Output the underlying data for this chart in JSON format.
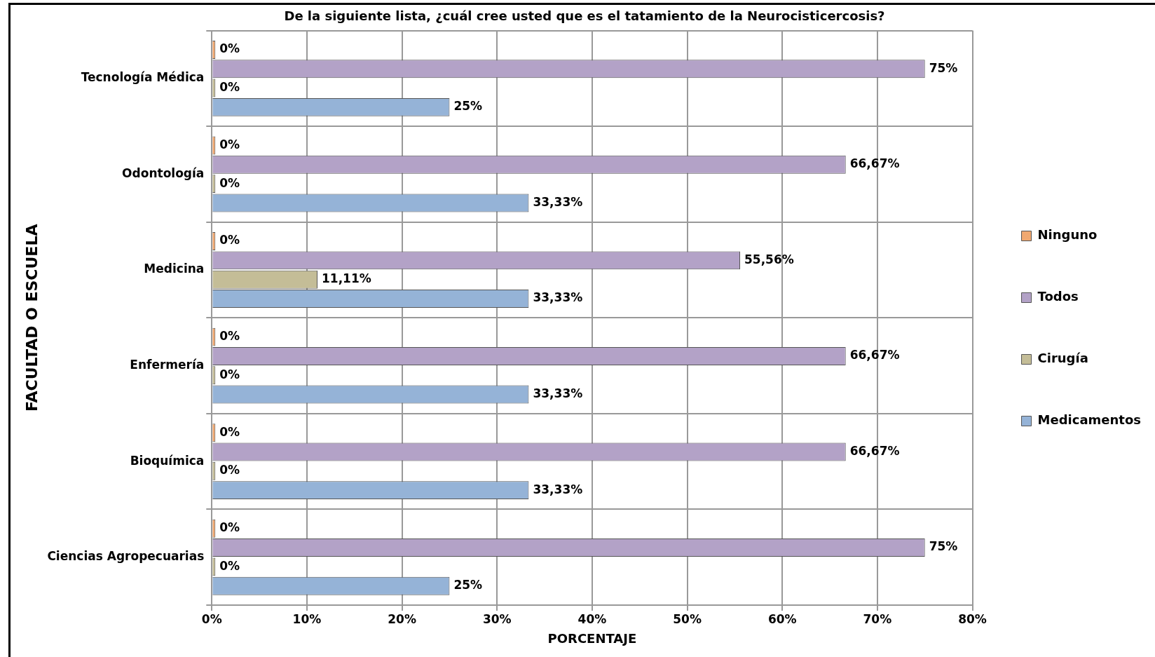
{
  "chart_data": {
    "type": "bar",
    "orientation": "horizontal",
    "title": "De la siguiente lista, ¿cuál cree usted que es el tatamiento de la Neurocisticercosis?",
    "xlabel": "PORCENTAJE",
    "ylabel": "FACULTAD O ESCUELA",
    "categories": [
      "Tecnología Médica",
      "Odontología",
      "Medicina",
      "Enfermería",
      "Bioquímica",
      "Ciencias Agropecuarias"
    ],
    "series": [
      {
        "name": "Ninguno",
        "color": "#f0a870",
        "values": [
          0,
          0,
          0,
          0,
          0,
          0
        ],
        "value_labels": [
          "0%",
          "0%",
          "0%",
          "0%",
          "0%",
          "0%"
        ]
      },
      {
        "name": "Todos",
        "color": "#b3a2c7",
        "values": [
          75,
          66.67,
          55.56,
          66.67,
          66.67,
          75
        ],
        "value_labels": [
          "75%",
          "66,67%",
          "55,56%",
          "66,67%",
          "66,67%",
          "75%"
        ]
      },
      {
        "name": "Cirugía",
        "color": "#c4bd97",
        "values": [
          0,
          0,
          11.11,
          0,
          0,
          0
        ],
        "value_labels": [
          "0%",
          "0%",
          "11,11%",
          "0%",
          "0%",
          "0%"
        ]
      },
      {
        "name": "Medicamentos",
        "color": "#95b3d7",
        "values": [
          25,
          33.33,
          33.33,
          33.33,
          33.33,
          25
        ],
        "value_labels": [
          "25%",
          "33,33%",
          "33,33%",
          "33,33%",
          "33,33%",
          "25%"
        ]
      }
    ],
    "xlim": [
      0,
      80
    ],
    "xticks": [
      {
        "value": 0,
        "label": "0%"
      },
      {
        "value": 10,
        "label": "10%"
      },
      {
        "value": 20,
        "label": "20%"
      },
      {
        "value": 30,
        "label": "30%"
      },
      {
        "value": 40,
        "label": "40%"
      },
      {
        "value": 50,
        "label": "50%"
      },
      {
        "value": 60,
        "label": "60%"
      },
      {
        "value": 70,
        "label": "70%"
      },
      {
        "value": 80,
        "label": "80%"
      }
    ],
    "grid": true,
    "legend": "right"
  }
}
